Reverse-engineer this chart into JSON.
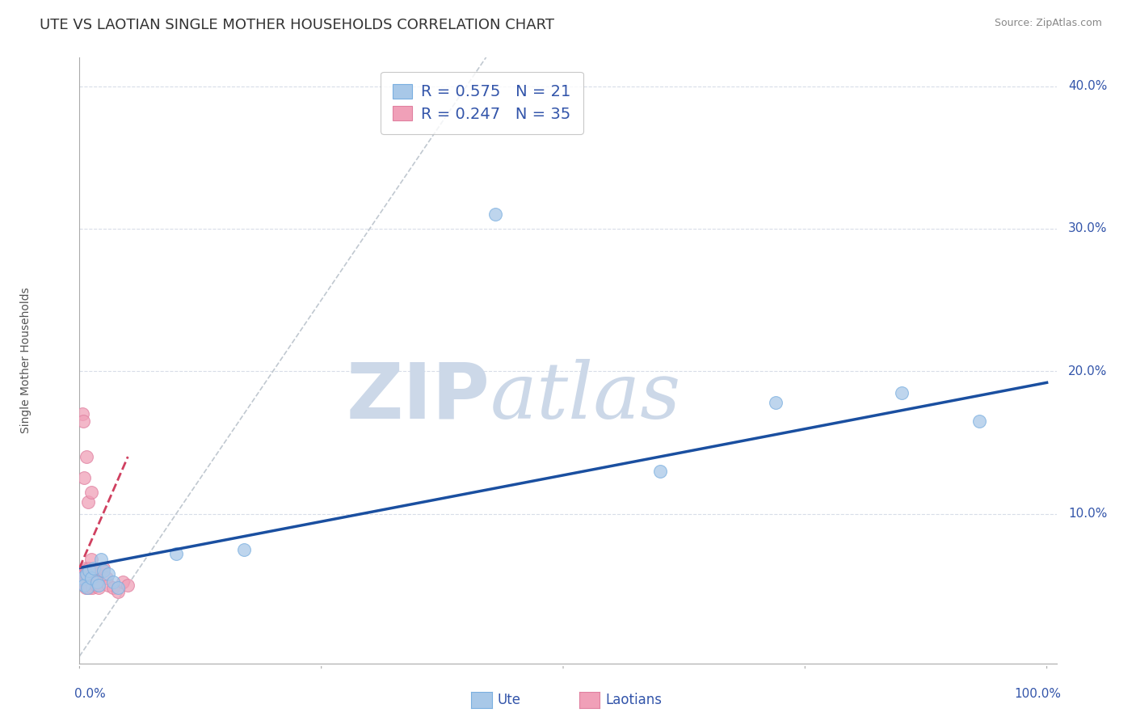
{
  "title": "UTE VS LAOTIAN SINGLE MOTHER HOUSEHOLDS CORRELATION CHART",
  "source": "Source: ZipAtlas.com",
  "ylabel": "Single Mother Households",
  "ute_R": 0.575,
  "ute_N": 21,
  "laotian_R": 0.247,
  "laotian_N": 35,
  "ute_color": "#a8c8e8",
  "laotian_color": "#f0a0b8",
  "ute_edge_color": "#7aafe0",
  "laotian_edge_color": "#e080a0",
  "ute_line_color": "#1a4fa0",
  "laotian_line_color": "#d04060",
  "ref_line_color": "#c0c8d0",
  "background_color": "#ffffff",
  "watermark_zip": "ZIP",
  "watermark_atlas": "atlas",
  "watermark_color": "#ccd8e8",
  "title_color": "#333333",
  "axis_color": "#3355aa",
  "ylabel_color": "#555555",
  "source_color": "#888888",
  "grid_color": "#d8dde8",
  "spine_color": "#aaaaaa",
  "legend_text_color": "#333333",
  "legend_num_color": "#3355aa",
  "ute_x": [
    0.003,
    0.005,
    0.007,
    0.008,
    0.01,
    0.012,
    0.015,
    0.018,
    0.02,
    0.022,
    0.025,
    0.03,
    0.035,
    0.04,
    0.1,
    0.17,
    0.43,
    0.6,
    0.72,
    0.85,
    0.93
  ],
  "ute_y": [
    0.055,
    0.05,
    0.058,
    0.048,
    0.06,
    0.055,
    0.062,
    0.052,
    0.05,
    0.068,
    0.06,
    0.058,
    0.052,
    0.048,
    0.072,
    0.075,
    0.31,
    0.13,
    0.178,
    0.185,
    0.165
  ],
  "laotian_x": [
    0.002,
    0.003,
    0.003,
    0.004,
    0.004,
    0.005,
    0.005,
    0.006,
    0.006,
    0.007,
    0.007,
    0.008,
    0.008,
    0.009,
    0.009,
    0.01,
    0.01,
    0.011,
    0.012,
    0.012,
    0.013,
    0.014,
    0.015,
    0.016,
    0.017,
    0.018,
    0.02,
    0.022,
    0.025,
    0.028,
    0.03,
    0.035,
    0.04,
    0.045,
    0.05
  ],
  "laotian_y": [
    0.06,
    0.17,
    0.055,
    0.165,
    0.06,
    0.058,
    0.125,
    0.062,
    0.048,
    0.055,
    0.14,
    0.05,
    0.06,
    0.055,
    0.108,
    0.062,
    0.048,
    0.052,
    0.068,
    0.115,
    0.048,
    0.055,
    0.058,
    0.06,
    0.05,
    0.052,
    0.048,
    0.06,
    0.062,
    0.055,
    0.05,
    0.048,
    0.045,
    0.052,
    0.05
  ],
  "ute_line_x0": 0.0,
  "ute_line_x1": 1.0,
  "ute_line_y0": 0.062,
  "ute_line_y1": 0.192,
  "laotian_line_x0": 0.0,
  "laotian_line_x1": 0.05,
  "laotian_line_y0": 0.062,
  "laotian_line_y1": 0.14,
  "xlim": [
    0.0,
    1.01
  ],
  "ylim": [
    -0.005,
    0.42
  ],
  "ytick_vals": [
    0.0,
    0.1,
    0.2,
    0.3,
    0.4
  ],
  "ytick_labels": [
    "",
    "10.0%",
    "20.0%",
    "30.0%",
    "40.0%"
  ],
  "title_fontsize": 13,
  "tick_fontsize": 11,
  "legend_fontsize": 14,
  "source_fontsize": 9,
  "ylabel_fontsize": 10,
  "watermark_fontsize_zip": 70,
  "watermark_fontsize_atlas": 70,
  "scatter_size": 130,
  "scatter_alpha": 0.75
}
